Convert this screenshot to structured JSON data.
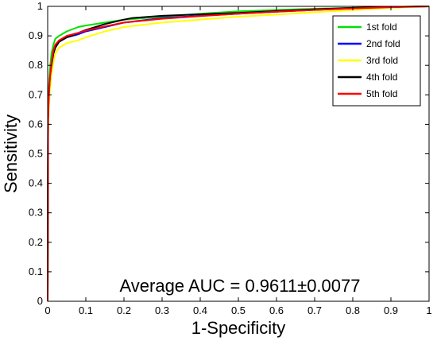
{
  "chart_data": {
    "type": "line",
    "xlabel": "1-Specificity",
    "ylabel": "Sensitivity",
    "xlim": [
      0,
      1
    ],
    "ylim": [
      0,
      1
    ],
    "x_ticks": [
      "0",
      "0.1",
      "0.2",
      "0.3",
      "0.4",
      "0.5",
      "0.6",
      "0.7",
      "0.8",
      "0.9",
      "1"
    ],
    "y_ticks": [
      "0",
      "0.1",
      "0.2",
      "0.3",
      "0.4",
      "0.5",
      "0.6",
      "0.7",
      "0.8",
      "0.9",
      "1"
    ],
    "grid": false,
    "legend_position": "top-right",
    "annotation": "Average AUC = 0.9611±0.0077",
    "series": [
      {
        "name": "1st fold",
        "color": "#00e000",
        "x": [
          0,
          0.001,
          0.003,
          0.006,
          0.01,
          0.015,
          0.02,
          0.03,
          0.05,
          0.08,
          0.1,
          0.15,
          0.2,
          0.3,
          0.4,
          0.5,
          0.6,
          0.7,
          0.8,
          0.9,
          1.0
        ],
        "y": [
          0,
          0.55,
          0.72,
          0.79,
          0.84,
          0.87,
          0.89,
          0.9,
          0.915,
          0.93,
          0.935,
          0.945,
          0.955,
          0.965,
          0.975,
          0.983,
          0.988,
          0.992,
          0.995,
          0.998,
          1.0
        ]
      },
      {
        "name": "2nd fold",
        "color": "#0000ff",
        "x": [
          0,
          0.001,
          0.003,
          0.006,
          0.01,
          0.015,
          0.02,
          0.03,
          0.05,
          0.08,
          0.1,
          0.15,
          0.2,
          0.3,
          0.4,
          0.5,
          0.6,
          0.7,
          0.8,
          0.9,
          1.0
        ],
        "y": [
          0,
          0.58,
          0.68,
          0.75,
          0.8,
          0.84,
          0.86,
          0.88,
          0.895,
          0.905,
          0.915,
          0.93,
          0.945,
          0.96,
          0.968,
          0.975,
          0.982,
          0.988,
          0.993,
          0.997,
          1.0
        ]
      },
      {
        "name": "3rd fold",
        "color": "#ffff00",
        "x": [
          0,
          0.001,
          0.003,
          0.006,
          0.01,
          0.015,
          0.02,
          0.03,
          0.05,
          0.08,
          0.1,
          0.15,
          0.2,
          0.3,
          0.4,
          0.5,
          0.6,
          0.7,
          0.8,
          0.9,
          1.0
        ],
        "y": [
          0,
          0.57,
          0.65,
          0.72,
          0.77,
          0.81,
          0.84,
          0.86,
          0.875,
          0.885,
          0.895,
          0.915,
          0.93,
          0.945,
          0.955,
          0.965,
          0.972,
          0.98,
          0.987,
          0.995,
          1.0
        ]
      },
      {
        "name": "4th fold",
        "color": "#000000",
        "x": [
          0,
          0.001,
          0.003,
          0.006,
          0.01,
          0.015,
          0.02,
          0.03,
          0.05,
          0.08,
          0.1,
          0.15,
          0.2,
          0.22,
          0.3,
          0.4,
          0.5,
          0.6,
          0.7,
          0.8,
          0.9,
          1.0
        ],
        "y": [
          0,
          0.62,
          0.7,
          0.76,
          0.8,
          0.84,
          0.86,
          0.88,
          0.895,
          0.91,
          0.92,
          0.94,
          0.955,
          0.96,
          0.968,
          0.973,
          0.978,
          0.984,
          0.99,
          0.995,
          0.998,
          1.0
        ]
      },
      {
        "name": "5th fold",
        "color": "#ff0000",
        "x": [
          0,
          0.001,
          0.003,
          0.006,
          0.01,
          0.015,
          0.02,
          0.03,
          0.05,
          0.08,
          0.1,
          0.15,
          0.2,
          0.3,
          0.4,
          0.5,
          0.6,
          0.7,
          0.8,
          0.9,
          1.0
        ],
        "y": [
          0,
          0.6,
          0.69,
          0.76,
          0.81,
          0.85,
          0.87,
          0.885,
          0.9,
          0.91,
          0.918,
          0.932,
          0.945,
          0.958,
          0.967,
          0.975,
          0.982,
          0.988,
          0.993,
          0.997,
          1.0
        ]
      }
    ]
  }
}
